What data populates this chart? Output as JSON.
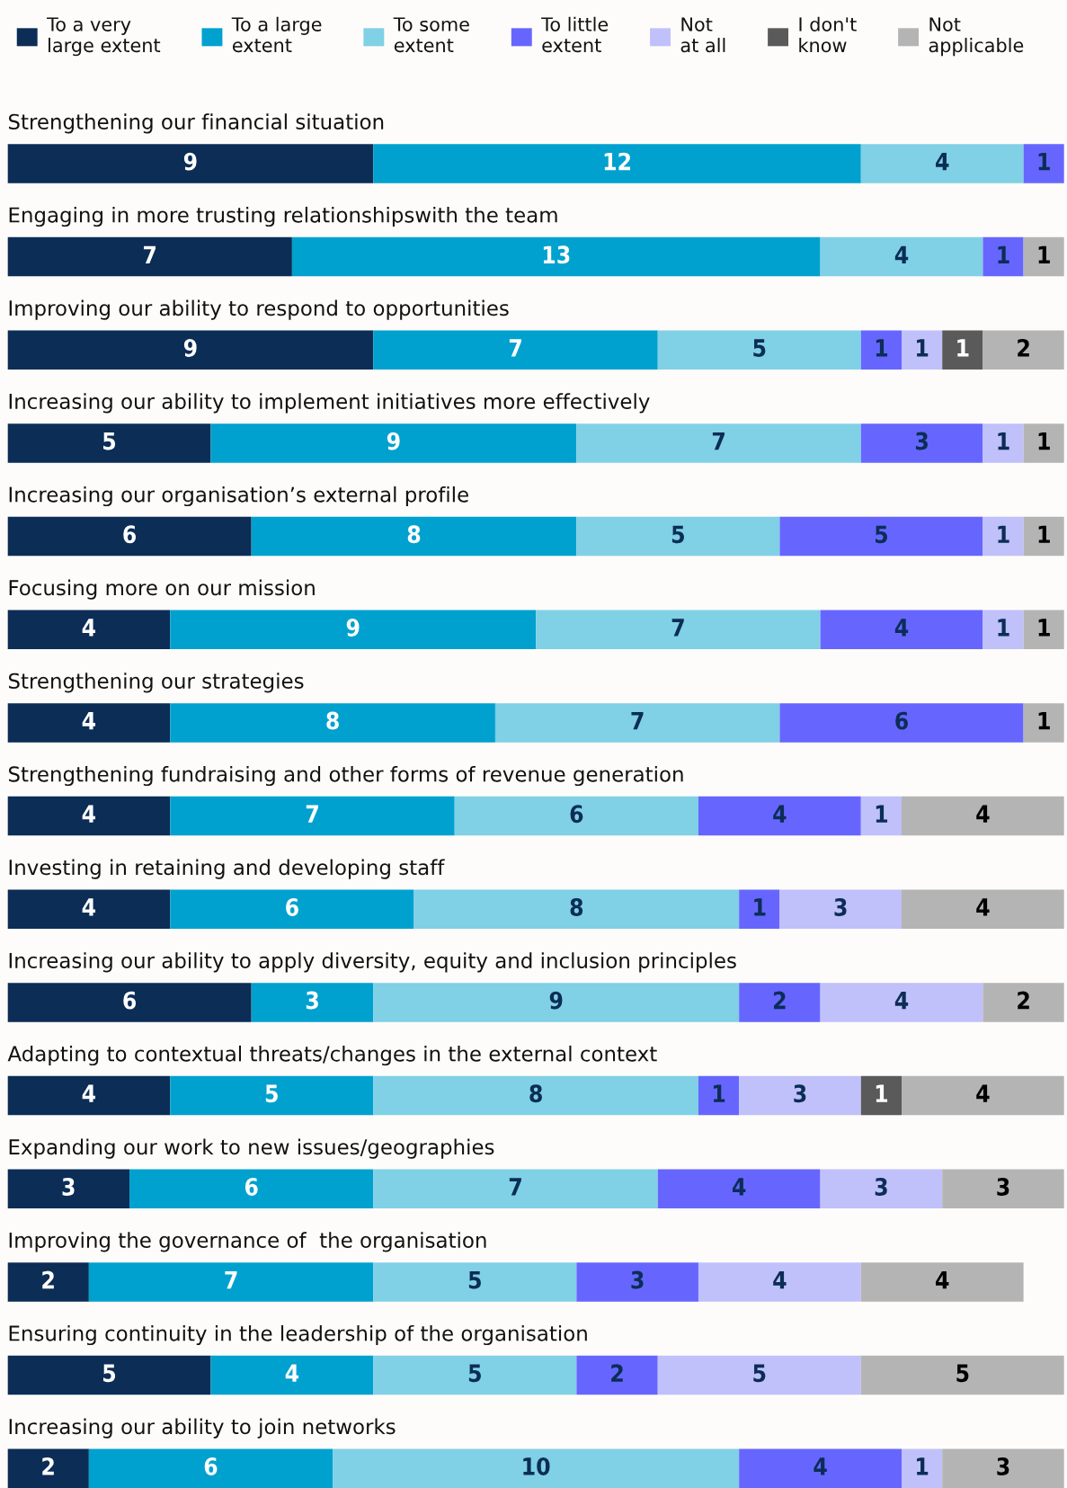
{
  "chart_data": {
    "type": "bar",
    "orientation": "horizontal",
    "stacked": true,
    "data_labels": true,
    "legend": "top",
    "xlim": [
      0,
      26
    ],
    "categories": [
      "Strengthening our financial situation",
      "Engaging in more trusting relationshipswith the team",
      "Improving our ability to respond to opportunities",
      "Increasing our ability to implement initiatives more effectively",
      "Increasing our organisation’s external profile",
      "Focusing more on our mission",
      "Strengthening our strategies",
      "Strengthening fundraising and other forms of revenue generation",
      "Investing in retaining and developing staff",
      "Increasing our ability to apply diversity, equity and inclusion principles",
      "Adapting to contextual threats/changes in the external context",
      "Expanding our work to new issues/geographies",
      "Improving the governance of  the organisation",
      "Ensuring continuity in the leadership of the organisation",
      "Increasing our ability to join networks"
    ],
    "series": [
      {
        "name": "To a very\nlarge extent",
        "color": "#0b2d56",
        "values": [
          9,
          7,
          9,
          5,
          6,
          4,
          4,
          4,
          4,
          6,
          4,
          3,
          2,
          5,
          2
        ]
      },
      {
        "name": "To a large\nextent",
        "color": "#00a1cf",
        "values": [
          12,
          13,
          7,
          9,
          8,
          9,
          8,
          7,
          6,
          3,
          5,
          6,
          7,
          4,
          6
        ]
      },
      {
        "name": "To some\nextent",
        "color": "#80d0e6",
        "values": [
          4,
          4,
          5,
          7,
          5,
          7,
          7,
          6,
          8,
          9,
          8,
          7,
          5,
          5,
          10
        ]
      },
      {
        "name": "To little\nextent",
        "color": "#6666ff",
        "values": [
          1,
          1,
          1,
          3,
          5,
          4,
          6,
          4,
          1,
          2,
          1,
          4,
          3,
          2,
          4
        ]
      },
      {
        "name": "Not\nat all",
        "color": "#c0c0fb",
        "values": [
          null,
          null,
          1,
          1,
          1,
          1,
          null,
          1,
          3,
          4,
          3,
          3,
          4,
          5,
          1
        ]
      },
      {
        "name": "I don't\nknow",
        "color": "#5a5a5a",
        "values": [
          null,
          null,
          1,
          null,
          null,
          null,
          null,
          null,
          null,
          null,
          1,
          null,
          null,
          null,
          null
        ]
      },
      {
        "name": "Not\napplicable",
        "color": "#b4b4b4",
        "values": [
          null,
          1,
          2,
          1,
          1,
          1,
          1,
          4,
          4,
          2,
          4,
          3,
          4,
          5,
          3
        ]
      }
    ]
  }
}
